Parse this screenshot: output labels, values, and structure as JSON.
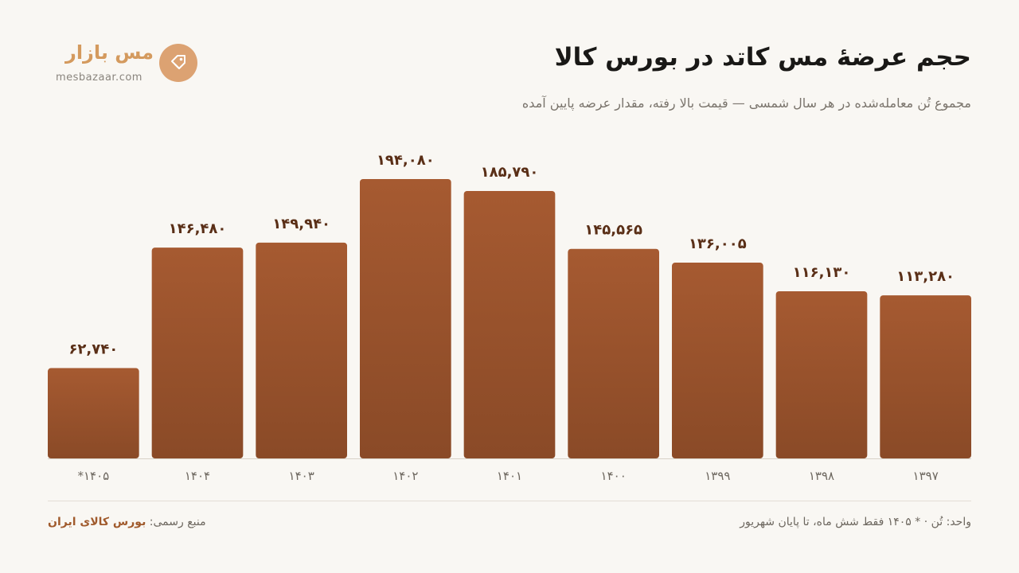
{
  "header": {
    "title": "حجم عرضهٔ مس کاتد در بورس کالا",
    "subtitle": "مجموع تُن معامله‌شده در هر سال شمسی — قیمت بالا رفته، مقدار عرضه پایین آمده"
  },
  "brand": {
    "name": "مس بازار",
    "url": "mesbazaar.com",
    "logo_icon": "tag-icon",
    "accent_color": "#dca272"
  },
  "footer": {
    "note": "واحد: تُن · * ۱۴۰۵ فقط شش ماه، تا پایان شهریور",
    "source_label": "منبع رسمی:",
    "source_name": "بورس کالای ایران"
  },
  "chart_data": {
    "type": "bar",
    "categories": [
      "*۱۴۰۵",
      "۱۴۰۴",
      "۱۴۰۳",
      "۱۴۰۲",
      "۱۴۰۱",
      "۱۴۰۰",
      "۱۳۹۹",
      "۱۳۹۸",
      "۱۳۹۷"
    ],
    "values": [
      62740,
      146480,
      149940,
      194080,
      185790,
      145565,
      136005,
      116130,
      113280
    ],
    "value_labels": [
      "۶۲,۷۴۰",
      "۱۴۶,۴۸۰",
      "۱۴۹,۹۴۰",
      "۱۹۴,۰۸۰",
      "۱۸۵,۷۹۰",
      "۱۴۵,۵۶۵",
      "۱۳۶,۰۰۵",
      "۱۱۶,۱۳۰",
      "۱۱۳,۲۸۰"
    ],
    "ylim": [
      0,
      205000
    ],
    "grid": false,
    "bar_color_top": "#a65a31",
    "bar_color_bottom": "#8a4a27",
    "label_color": "#5a2f17"
  }
}
